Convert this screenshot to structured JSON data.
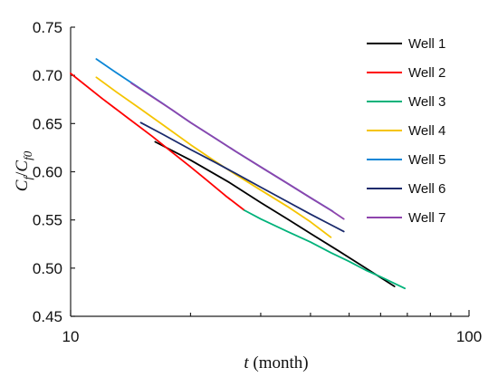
{
  "chart_data": {
    "type": "line",
    "xlabel": {
      "symbol": "t",
      "unit": " (month)"
    },
    "ylabel": {
      "base": "C",
      "sub1": "f",
      "slash": "/",
      "sub2": "f0"
    },
    "xscale": "log",
    "xlim": [
      10,
      100
    ],
    "ylim": [
      0.45,
      0.75
    ],
    "xticks": [
      10,
      100
    ],
    "xtick_labels": [
      "10",
      "100"
    ],
    "yticks": [
      0.45,
      0.5,
      0.55,
      0.6,
      0.65,
      0.7,
      0.75
    ],
    "ytick_labels": [
      "0.45",
      "0.50",
      "0.55",
      "0.60",
      "0.65",
      "0.70",
      "0.75"
    ],
    "grid": false,
    "legend_position": "top-right",
    "series": [
      {
        "name": "Well 1",
        "color": "#000000",
        "x": [
          16.3,
          20,
          25,
          30,
          35,
          40,
          47,
          55,
          65
        ],
        "y": [
          0.631,
          0.612,
          0.589,
          0.568,
          0.551,
          0.536,
          0.518,
          0.5,
          0.481
        ]
      },
      {
        "name": "Well 2",
        "color": "#ff0000",
        "x": [
          10,
          12,
          14,
          16,
          18,
          20,
          22,
          24.5,
          27.3
        ],
        "y": [
          0.702,
          0.676,
          0.655,
          0.637,
          0.62,
          0.605,
          0.591,
          0.575,
          0.56
        ]
      },
      {
        "name": "Well 3",
        "color": "#00b27a",
        "x": [
          27.3,
          30,
          35,
          40,
          45,
          50,
          55,
          60,
          69
        ],
        "y": [
          0.56,
          0.551,
          0.538,
          0.527,
          0.516,
          0.507,
          0.498,
          0.491,
          0.479
        ]
      },
      {
        "name": "Well 4",
        "color": "#f5c400",
        "x": [
          11.6,
          13,
          15,
          17,
          20,
          23,
          26,
          30,
          35,
          40,
          45
        ],
        "y": [
          0.698,
          0.683,
          0.665,
          0.649,
          0.628,
          0.611,
          0.597,
          0.581,
          0.564,
          0.548,
          0.532
        ]
      },
      {
        "name": "Well 5",
        "color": "#0b86d6",
        "x": [
          11.6,
          13,
          15,
          17,
          20,
          23,
          26,
          30,
          35,
          40,
          45.5
        ],
        "y": [
          0.717,
          0.703,
          0.686,
          0.671,
          0.651,
          0.635,
          0.621,
          0.605,
          0.588,
          0.573,
          0.559
        ]
      },
      {
        "name": "Well 6",
        "color": "#1a2a6c",
        "x": [
          15,
          17,
          20,
          23,
          26,
          30,
          35,
          40,
          45,
          48.5
        ],
        "y": [
          0.651,
          0.639,
          0.623,
          0.61,
          0.598,
          0.584,
          0.569,
          0.556,
          0.545,
          0.538
        ]
      },
      {
        "name": "Well 7",
        "color": "#8e44ad",
        "x": [
          14.2,
          16,
          18,
          20,
          23,
          26,
          30,
          35,
          40,
          45,
          48.5
        ],
        "y": [
          0.692,
          0.678,
          0.664,
          0.651,
          0.635,
          0.621,
          0.605,
          0.588,
          0.573,
          0.56,
          0.551
        ]
      }
    ]
  }
}
